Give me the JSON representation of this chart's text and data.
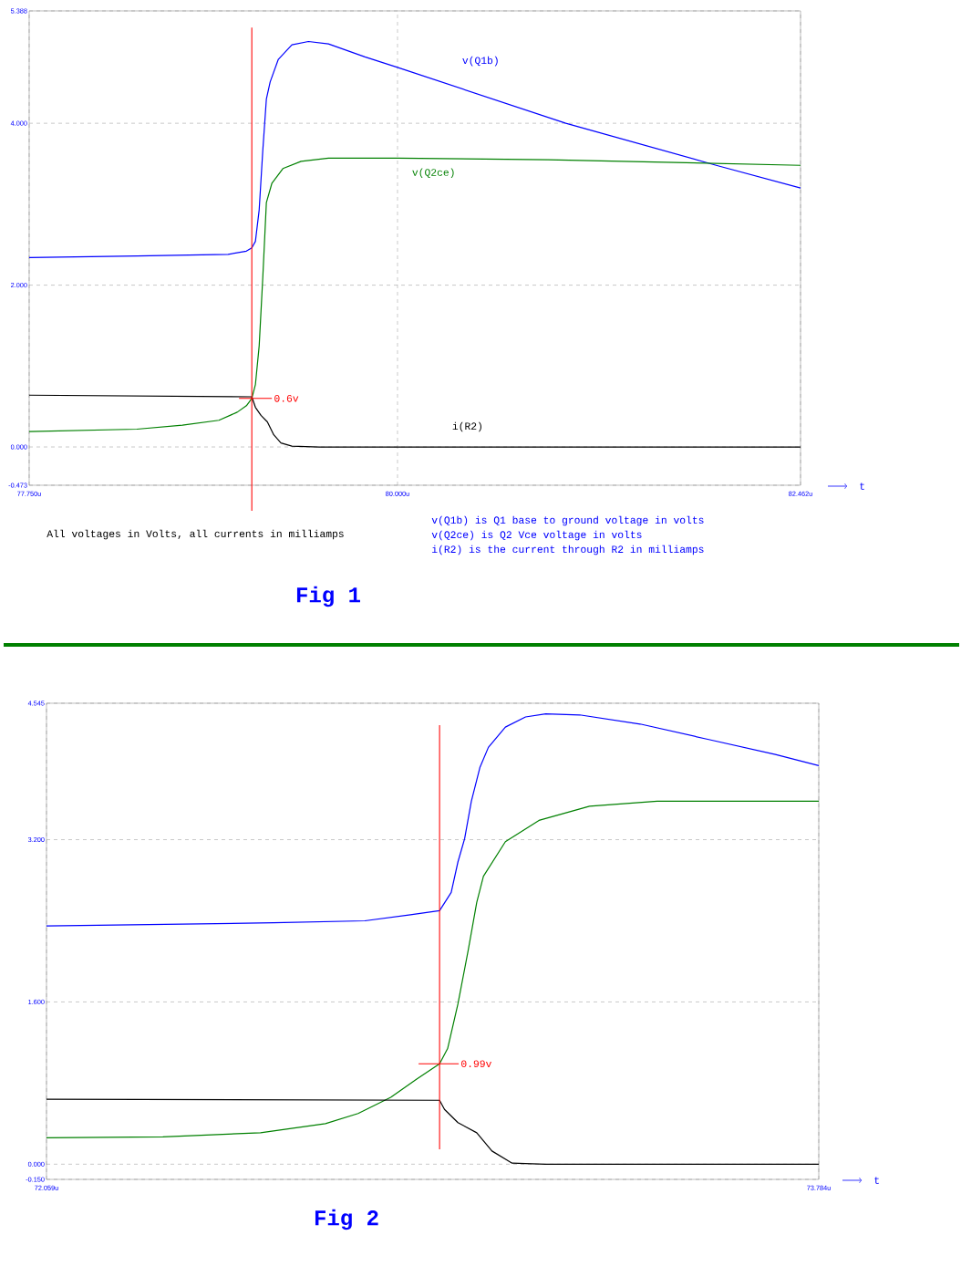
{
  "chart_data": [
    {
      "type": "line",
      "title": "Fig 1",
      "xlabel": "t",
      "grid": true,
      "xlim": [
        77.75,
        82.462
      ],
      "ylim": [
        -0.473,
        5.388
      ],
      "xticks": [
        {
          "value": 77.75,
          "label": "77.750u"
        },
        {
          "value": 80.0,
          "label": "80.000u"
        },
        {
          "value": 82.462,
          "label": "82.462u"
        }
      ],
      "yticks": [
        {
          "value": -0.473,
          "label": "-0.473"
        },
        {
          "value": 0,
          "label": "0.000"
        },
        {
          "value": 2,
          "label": "2.000"
        },
        {
          "value": 4,
          "label": "4.000"
        },
        {
          "value": 5.388,
          "label": "5.388"
        }
      ],
      "series": [
        {
          "name": "v(Q1b)",
          "color": "#0000ff",
          "x": [
            77.75,
            78.408,
            78.965,
            79.077,
            79.11,
            79.132,
            79.155,
            79.177,
            79.199,
            79.222,
            79.272,
            79.355,
            79.456,
            79.578,
            79.801,
            80.0,
            81.028,
            81.947,
            82.462
          ],
          "values": [
            2.34,
            2.36,
            2.38,
            2.42,
            2.46,
            2.54,
            2.93,
            3.66,
            4.3,
            4.51,
            4.79,
            4.97,
            5.01,
            4.98,
            4.82,
            4.69,
            4.0,
            3.48,
            3.2
          ]
        },
        {
          "name": "v(Q2ce)",
          "color": "#008000",
          "x": [
            77.75,
            78.408,
            78.686,
            78.909,
            79.021,
            79.077,
            79.11,
            79.132,
            79.155,
            79.177,
            79.199,
            79.233,
            79.3,
            79.411,
            79.578,
            80.0,
            80.919,
            82.462
          ],
          "values": [
            0.19,
            0.22,
            0.27,
            0.33,
            0.43,
            0.51,
            0.6,
            0.77,
            1.25,
            2.09,
            3.02,
            3.26,
            3.44,
            3.53,
            3.57,
            3.57,
            3.55,
            3.48
          ]
        },
        {
          "name": "i(R2)",
          "color": "#000000",
          "x": [
            77.75,
            79.11,
            79.132,
            79.166,
            79.205,
            79.244,
            79.288,
            79.355,
            79.523,
            82.462
          ],
          "values": [
            0.64,
            0.62,
            0.49,
            0.39,
            0.31,
            0.15,
            0.05,
            0.01,
            0.0,
            0.0
          ]
        }
      ],
      "ref_lines": [
        {
          "axis": "x",
          "value": 79.11,
          "color": "#ff0000"
        }
      ],
      "annotations": [
        {
          "text": "0.6v",
          "x": 79.11,
          "y": 0.6
        },
        "All voltages in Volts, all currents in milliamps",
        "v(Q1b) is Q1 base to ground voltage in volts",
        "v(Q2ce) is Q2 Vce voltage in volts",
        "i(R2) is the current through R2 in milliamps"
      ]
    },
    {
      "type": "line",
      "title": "Fig 2",
      "xlabel": "t",
      "grid": true,
      "xlim": [
        72.059,
        73.784
      ],
      "ylim": [
        -0.15,
        4.545
      ],
      "xticks": [
        {
          "value": 72.059,
          "label": "72.059u"
        },
        {
          "value": 73.784,
          "label": "73.784u"
        }
      ],
      "yticks": [
        {
          "value": -0.15,
          "label": "-0.150"
        },
        {
          "value": 0,
          "label": "0.000"
        },
        {
          "value": 1.6,
          "label": "1.600"
        },
        {
          "value": 3.2,
          "label": "3.200"
        },
        {
          "value": 4.545,
          "label": "4.545"
        }
      ],
      "series": [
        {
          "color": "#0000ff",
          "x": [
            72.059,
            72.566,
            72.77,
            72.872,
            72.937,
            72.963,
            72.978,
            72.993,
            73.008,
            73.027,
            73.046,
            73.084,
            73.129,
            73.174,
            73.25,
            73.385,
            73.536,
            73.687,
            73.784
          ],
          "values": [
            2.35,
            2.38,
            2.4,
            2.46,
            2.5,
            2.68,
            2.98,
            3.21,
            3.58,
            3.91,
            4.11,
            4.31,
            4.41,
            4.44,
            4.43,
            4.34,
            4.19,
            4.04,
            3.93
          ]
        },
        {
          "color": "#008000",
          "x": [
            72.059,
            72.319,
            72.537,
            72.682,
            72.755,
            72.828,
            72.886,
            72.937,
            72.955,
            72.978,
            73.001,
            73.02,
            73.035,
            73.084,
            73.159,
            73.272,
            73.423,
            73.784
          ],
          "values": [
            0.26,
            0.27,
            0.31,
            0.4,
            0.5,
            0.66,
            0.84,
            0.99,
            1.14,
            1.58,
            2.11,
            2.58,
            2.84,
            3.18,
            3.39,
            3.53,
            3.58,
            3.58
          ]
        },
        {
          "color": "#000000",
          "x": [
            72.059,
            72.937,
            72.948,
            72.978,
            73.02,
            73.054,
            73.099,
            73.174,
            73.784
          ],
          "values": [
            0.64,
            0.63,
            0.54,
            0.41,
            0.31,
            0.13,
            0.01,
            0.0,
            0.0
          ]
        }
      ],
      "ref_lines": [
        {
          "axis": "x",
          "value": 72.937,
          "color": "#ff0000"
        }
      ],
      "annotations": [
        {
          "text": "0.99v",
          "x": 72.937,
          "y": 0.99
        }
      ]
    }
  ]
}
